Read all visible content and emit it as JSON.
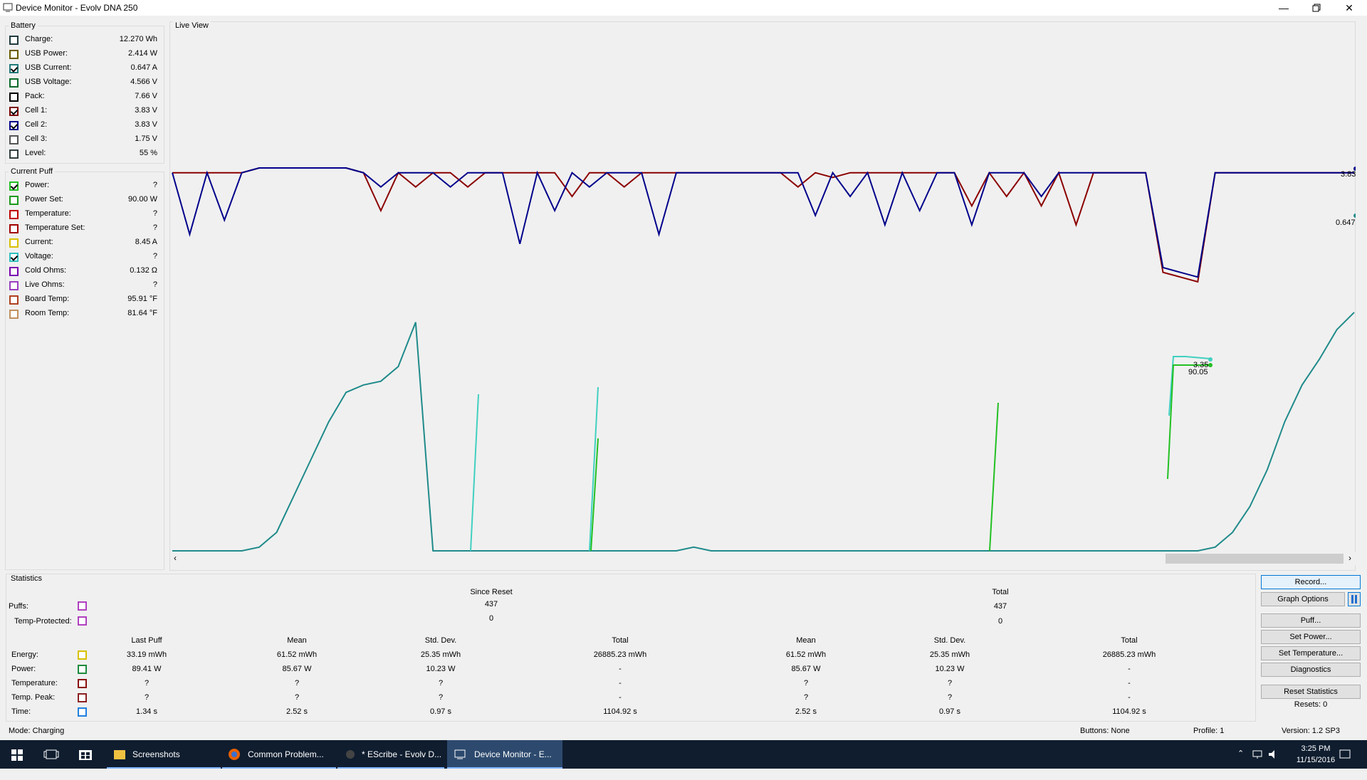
{
  "window": {
    "title": "Device Monitor - Evolv DNA 250"
  },
  "battery": {
    "title": "Battery",
    "items": [
      {
        "label": "Charge:",
        "value": "12.270 Wh",
        "color": "#1f3b3f",
        "checked": false
      },
      {
        "label": "USB Power:",
        "value": "2.414 W",
        "color": "#6b5a00",
        "checked": false
      },
      {
        "label": "USB Current:",
        "value": "0.647 A",
        "color": "#1f7a7a",
        "checked": true
      },
      {
        "label": "USB Voltage:",
        "value": "4.566 V",
        "color": "#0b6b2a",
        "checked": false
      },
      {
        "label": "Pack:",
        "value": "7.66 V",
        "color": "#000000",
        "checked": false
      },
      {
        "label": "Cell 1:",
        "value": "3.83 V",
        "color": "#7a0000",
        "checked": true
      },
      {
        "label": "Cell 2:",
        "value": "3.83 V",
        "color": "#00008b",
        "checked": true
      },
      {
        "label": "Cell 3:",
        "value": "1.75 V",
        "color": "#555555",
        "checked": false
      },
      {
        "label": "Level:",
        "value": "55 %",
        "color": "#2f3f3f",
        "checked": false
      }
    ]
  },
  "current_puff": {
    "title": "Current Puff",
    "items": [
      {
        "label": "Power:",
        "value": "?",
        "color": "#22c022",
        "checked": true
      },
      {
        "label": "Power Set:",
        "value": "90.00 W",
        "color": "#1a9a1a",
        "checked": false
      },
      {
        "label": "Temperature:",
        "value": "?",
        "color": "#c00000",
        "checked": false
      },
      {
        "label": "Temperature Set:",
        "value": "?",
        "color": "#a00000",
        "checked": false
      },
      {
        "label": "Current:",
        "value": "8.45 A",
        "color": "#d8c000",
        "checked": false
      },
      {
        "label": "Voltage:",
        "value": "?",
        "color": "#30c0c0",
        "checked": true
      },
      {
        "label": "Cold Ohms:",
        "value": "0.132 Ω",
        "color": "#7a00b0",
        "checked": false
      },
      {
        "label": "Live Ohms:",
        "value": "?",
        "color": "#9a40c0",
        "checked": false
      },
      {
        "label": "Board Temp:",
        "value": "95.91 °F",
        "color": "#b04020",
        "checked": false
      },
      {
        "label": "Room Temp:",
        "value": "81.64 °F",
        "color": "#c09060",
        "checked": false
      }
    ]
  },
  "live_view": {
    "title": "Live View",
    "markers": {
      "cell_value": "3.83",
      "usb_current_value": "0.647",
      "voltage_value": "3.35",
      "power_value": "90.05"
    }
  },
  "chart_data": {
    "type": "line",
    "title": "",
    "series": [
      {
        "color": "#8b0000",
        "values": [
          3.83,
          3.83,
          3.83,
          3.83,
          3.83,
          3.84,
          3.84,
          3.84,
          3.84,
          3.84,
          3.84,
          3.83,
          3.75,
          3.83,
          3.8,
          3.83,
          3.83,
          3.8,
          3.83,
          3.83,
          3.83,
          3.83,
          3.83,
          3.78,
          3.83,
          3.83,
          3.8,
          3.83,
          3.83,
          3.83,
          3.83,
          3.83,
          3.83,
          3.83,
          3.83,
          3.83,
          3.8,
          3.83,
          3.82,
          3.83,
          3.83,
          3.83,
          3.83,
          3.83,
          3.83,
          3.83,
          3.76,
          3.83,
          3.78,
          3.83,
          3.76,
          3.83,
          3.72,
          3.83,
          3.83,
          3.83,
          3.83,
          3.62,
          3.61,
          3.6,
          3.83,
          3.83,
          3.83,
          3.83,
          3.83,
          3.83,
          3.83,
          3.83,
          3.83
        ]
      },
      {
        "color": "#00008b",
        "values": [
          3.83,
          3.7,
          3.83,
          3.73,
          3.83,
          3.84,
          3.84,
          3.84,
          3.84,
          3.84,
          3.84,
          3.83,
          3.8,
          3.83,
          3.83,
          3.83,
          3.8,
          3.83,
          3.83,
          3.83,
          3.68,
          3.83,
          3.75,
          3.83,
          3.8,
          3.83,
          3.83,
          3.83,
          3.7,
          3.83,
          3.83,
          3.83,
          3.83,
          3.83,
          3.83,
          3.83,
          3.83,
          3.74,
          3.83,
          3.78,
          3.83,
          3.72,
          3.83,
          3.75,
          3.83,
          3.83,
          3.72,
          3.83,
          3.83,
          3.83,
          3.78,
          3.83,
          3.83,
          3.83,
          3.83,
          3.83,
          3.83,
          3.63,
          3.62,
          3.61,
          3.83,
          3.83,
          3.83,
          3.83,
          3.83,
          3.83,
          3.83,
          3.83,
          3.83
        ]
      },
      {
        "color": "#1f8a8a",
        "values": [
          0.0,
          0.0,
          0.0,
          0.0,
          0.0,
          0.01,
          0.05,
          0.15,
          0.25,
          0.35,
          0.43,
          0.45,
          0.46,
          0.5,
          0.62,
          0.0,
          0.0,
          0.0,
          0.0,
          0.0,
          0.0,
          0.0,
          0.0,
          0.0,
          0.0,
          0.0,
          0.0,
          0.0,
          0.0,
          0.0,
          0.01,
          0.0,
          0.0,
          0.0,
          0.0,
          0.0,
          0.0,
          0.0,
          0.0,
          0.0,
          0.0,
          0.0,
          0.0,
          0.0,
          0.0,
          0.0,
          0.0,
          0.0,
          0.0,
          0.0,
          0.0,
          0.0,
          0.0,
          0.0,
          0.0,
          0.0,
          0.0,
          0.0,
          0.0,
          0.0,
          0.01,
          0.05,
          0.12,
          0.22,
          0.35,
          0.45,
          0.52,
          0.6,
          0.647
        ]
      }
    ],
    "ylim": [
      0,
      1
    ],
    "grid": false
  },
  "statistics": {
    "title": "Statistics",
    "since_reset_label": "Since Reset",
    "total_label": "Total",
    "puffs_label": "Puffs:",
    "temp_protected_label": "Temp-Protected:",
    "puffs_since": "437",
    "puffs_total": "437",
    "temp_since": "0",
    "temp_total": "0",
    "col_headers": [
      "Last Puff",
      "Mean",
      "Std. Dev.",
      "Total",
      "Mean",
      "Std. Dev.",
      "Total"
    ],
    "rows": [
      {
        "label": "Energy:",
        "color": "#d8c000",
        "cells": [
          "33.19 mWh",
          "61.52 mWh",
          "25.35 mWh",
          "26885.23 mWh",
          "61.52 mWh",
          "25.35 mWh",
          "26885.23 mWh"
        ]
      },
      {
        "label": "Power:",
        "color": "#1a8a3a",
        "cells": [
          "89.41 W",
          "85.67 W",
          "10.23 W",
          "-",
          "85.67 W",
          "10.23 W",
          "-"
        ]
      },
      {
        "label": "Temperature:",
        "color": "#8b1010",
        "cells": [
          "?",
          "?",
          "?",
          "-",
          "?",
          "?",
          "-"
        ]
      },
      {
        "label": "Temp. Peak:",
        "color": "#8b2020",
        "cells": [
          "?",
          "?",
          "?",
          "-",
          "?",
          "?",
          "-"
        ]
      },
      {
        "label": "Time:",
        "color": "#1f7fe0",
        "cells": [
          "1.34 s",
          "2.52 s",
          "0.97 s",
          "1104.92 s",
          "2.52 s",
          "0.97 s",
          "1104.92 s"
        ]
      }
    ]
  },
  "buttons": {
    "record": "Record...",
    "graph_options": "Graph Options",
    "puff": "Puff...",
    "set_power": "Set Power...",
    "set_temperature": "Set Temperature...",
    "diagnostics": "Diagnostics",
    "reset_statistics": "Reset Statistics",
    "resets": "Resets: 0"
  },
  "status": {
    "mode": "Mode: Charging",
    "buttons": "Buttons: None",
    "profile": "Profile: 1",
    "version": "Version: 1.2 SP3"
  },
  "taskbar": {
    "items": [
      "Screenshots",
      "Common Problem...",
      "* EScribe - Evolv D...",
      "Device Monitor - E..."
    ],
    "time": "3:25 PM",
    "date": "11/15/2016"
  }
}
